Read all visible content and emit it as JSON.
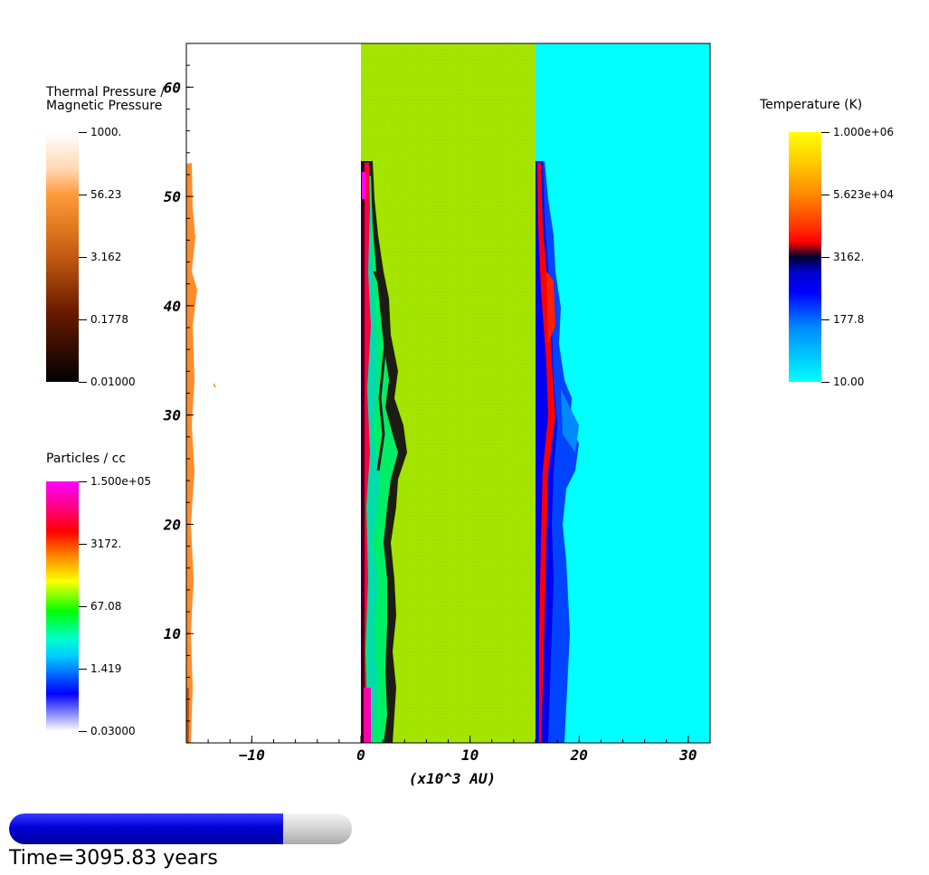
{
  "chart_data": {
    "type": "heatmap",
    "title": "",
    "xlabel": "(x10^3 AU)",
    "ylabel": "",
    "xlim": [
      -16,
      32
    ],
    "ylim": [
      0,
      64
    ],
    "x_ticks": [
      -10,
      0,
      10,
      20,
      30
    ],
    "y_ticks": [
      10,
      20,
      30,
      40,
      50,
      60
    ],
    "panels": [
      {
        "name": "thermal_over_magnetic_pressure",
        "x_range": [
          -16,
          0
        ],
        "background": "#ffffff"
      },
      {
        "name": "density",
        "x_range": [
          0,
          16
        ],
        "background": "#aaee00"
      },
      {
        "name": "temperature",
        "x_range": [
          16,
          32
        ],
        "background": "#00ffff"
      }
    ],
    "grid": false
  },
  "colorbars": {
    "pressure": {
      "title": "Thermal Pressure /\nMagnetic Pressure",
      "ticks": [
        "1000.",
        "56.23",
        "3.162",
        "0.1778",
        "0.01000"
      ],
      "colors": [
        "#ffffff",
        "#ff9a3c",
        "#c05a10",
        "#6a1a00",
        "#000000"
      ]
    },
    "density": {
      "title": "Particles / cc",
      "ticks": [
        "1.500e+05",
        "3172.",
        "67.08",
        "1.419",
        "0.03000"
      ],
      "colors": [
        "#ff00ff",
        "#ff0000",
        "#ffff00",
        "#00ff00",
        "#00ffff",
        "#0000ff",
        "#ffffff"
      ]
    },
    "temperature": {
      "title": "Temperature (K)",
      "ticks": [
        "1.000e+06",
        "5.623e+04",
        "3162.",
        "177.8",
        "10.00"
      ],
      "colors": [
        "#ffff00",
        "#ff8800",
        "#ff0000",
        "#000040",
        "#0000ff",
        "#00ffff"
      ]
    }
  },
  "time": {
    "label": "Time=3095.83 years",
    "progress": 0.8
  }
}
